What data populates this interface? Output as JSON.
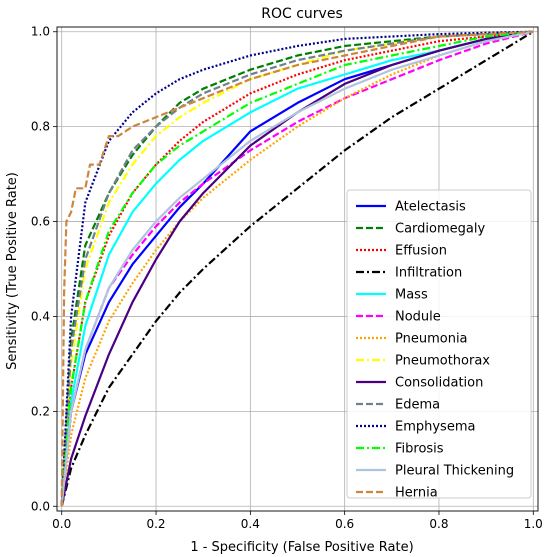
{
  "chart_data": {
    "type": "line",
    "title": "ROC curves",
    "xlabel": "1 - Specificity (False Positive Rate)",
    "ylabel": "Sensitivity (True Positive Rate)",
    "xlim": [
      -0.01,
      1.01
    ],
    "ylim": [
      -0.01,
      1.01
    ],
    "xticks": [
      0.0,
      0.2,
      0.4,
      0.6,
      0.8,
      1.0
    ],
    "yticks": [
      0.0,
      0.2,
      0.4,
      0.6,
      0.8,
      1.0
    ],
    "xtick_labels": [
      "0.0",
      "0.2",
      "0.4",
      "0.6",
      "0.8",
      "1.0"
    ],
    "ytick_labels": [
      "0.0",
      "0.2",
      "0.4",
      "0.6",
      "0.8",
      "1.0"
    ],
    "grid": true,
    "legend": "center-right",
    "series": [
      {
        "name": "Atelectasis",
        "color": "#0000ff",
        "style": "solid",
        "x": [
          0,
          0.02,
          0.05,
          0.1,
          0.15,
          0.2,
          0.25,
          0.3,
          0.4,
          0.5,
          0.6,
          0.7,
          0.8,
          0.9,
          1.0
        ],
        "y": [
          0,
          0.2,
          0.32,
          0.43,
          0.51,
          0.57,
          0.63,
          0.68,
          0.79,
          0.85,
          0.9,
          0.93,
          0.96,
          0.985,
          1.0
        ]
      },
      {
        "name": "Cardiomegaly",
        "color": "#008000",
        "style": "dashed",
        "x": [
          0,
          0.02,
          0.05,
          0.1,
          0.15,
          0.2,
          0.25,
          0.3,
          0.4,
          0.5,
          0.6,
          0.7,
          0.8,
          0.9,
          1.0
        ],
        "y": [
          0,
          0.35,
          0.55,
          0.66,
          0.74,
          0.8,
          0.85,
          0.88,
          0.92,
          0.95,
          0.97,
          0.98,
          0.99,
          0.995,
          1.0
        ]
      },
      {
        "name": "Effusion",
        "color": "#ff0000",
        "style": "dotted",
        "x": [
          0,
          0.02,
          0.05,
          0.1,
          0.15,
          0.2,
          0.25,
          0.3,
          0.4,
          0.5,
          0.6,
          0.7,
          0.8,
          0.9,
          1.0
        ],
        "y": [
          0,
          0.25,
          0.43,
          0.57,
          0.66,
          0.72,
          0.77,
          0.81,
          0.87,
          0.91,
          0.94,
          0.96,
          0.98,
          0.99,
          1.0
        ]
      },
      {
        "name": "Infiltration",
        "color": "#000000",
        "style": "dashdot",
        "x": [
          0,
          0.02,
          0.05,
          0.1,
          0.15,
          0.2,
          0.25,
          0.3,
          0.4,
          0.5,
          0.6,
          0.7,
          0.8,
          0.9,
          1.0
        ],
        "y": [
          0,
          0.08,
          0.15,
          0.25,
          0.32,
          0.39,
          0.45,
          0.5,
          0.59,
          0.67,
          0.75,
          0.82,
          0.88,
          0.94,
          1.0
        ]
      },
      {
        "name": "Mass",
        "color": "#00ffff",
        "style": "solid",
        "x": [
          0,
          0.02,
          0.05,
          0.1,
          0.15,
          0.2,
          0.25,
          0.3,
          0.4,
          0.5,
          0.6,
          0.7,
          0.8,
          0.9,
          1.0
        ],
        "y": [
          0,
          0.22,
          0.38,
          0.53,
          0.62,
          0.68,
          0.73,
          0.77,
          0.83,
          0.88,
          0.91,
          0.94,
          0.96,
          0.985,
          1.0
        ]
      },
      {
        "name": "Nodule",
        "color": "#ff00ff",
        "style": "dashed",
        "x": [
          0,
          0.02,
          0.05,
          0.1,
          0.15,
          0.2,
          0.25,
          0.3,
          0.4,
          0.5,
          0.6,
          0.7,
          0.8,
          0.9,
          1.0
        ],
        "y": [
          0,
          0.2,
          0.33,
          0.46,
          0.53,
          0.59,
          0.64,
          0.68,
          0.75,
          0.81,
          0.86,
          0.9,
          0.94,
          0.975,
          1.0
        ]
      },
      {
        "name": "Pneumonia",
        "color": "#ffa500",
        "style": "dotted",
        "x": [
          0,
          0.02,
          0.05,
          0.1,
          0.15,
          0.2,
          0.25,
          0.3,
          0.4,
          0.5,
          0.6,
          0.7,
          0.8,
          0.9,
          1.0
        ],
        "y": [
          0,
          0.15,
          0.27,
          0.39,
          0.47,
          0.54,
          0.6,
          0.65,
          0.73,
          0.8,
          0.86,
          0.91,
          0.95,
          0.98,
          1.0
        ]
      },
      {
        "name": "Pneumothorax",
        "color": "#ffff00",
        "style": "dashdot",
        "x": [
          0,
          0.02,
          0.05,
          0.1,
          0.15,
          0.2,
          0.25,
          0.3,
          0.4,
          0.5,
          0.6,
          0.7,
          0.8,
          0.9,
          1.0
        ],
        "y": [
          0,
          0.3,
          0.5,
          0.64,
          0.72,
          0.78,
          0.82,
          0.85,
          0.9,
          0.93,
          0.96,
          0.975,
          0.99,
          0.995,
          1.0
        ]
      },
      {
        "name": "Consolidation",
        "color": "#4b0082",
        "style": "solid",
        "x": [
          0,
          0.02,
          0.05,
          0.1,
          0.15,
          0.2,
          0.25,
          0.3,
          0.4,
          0.5,
          0.6,
          0.7,
          0.8,
          0.9,
          1.0
        ],
        "y": [
          0,
          0.1,
          0.19,
          0.32,
          0.43,
          0.52,
          0.6,
          0.66,
          0.76,
          0.83,
          0.89,
          0.93,
          0.96,
          0.985,
          1.0
        ]
      },
      {
        "name": "Edema",
        "color": "#708090",
        "style": "dashed",
        "x": [
          0,
          0.02,
          0.05,
          0.1,
          0.15,
          0.2,
          0.25,
          0.3,
          0.4,
          0.5,
          0.6,
          0.7,
          0.8,
          0.9,
          1.0
        ],
        "y": [
          0,
          0.33,
          0.52,
          0.66,
          0.75,
          0.8,
          0.84,
          0.87,
          0.91,
          0.94,
          0.96,
          0.975,
          0.99,
          0.995,
          1.0
        ]
      },
      {
        "name": "Emphysema",
        "color": "#00008b",
        "style": "dotted",
        "x": [
          0,
          0.02,
          0.05,
          0.1,
          0.15,
          0.2,
          0.25,
          0.3,
          0.4,
          0.5,
          0.6,
          0.7,
          0.8,
          0.9,
          1.0
        ],
        "y": [
          0,
          0.4,
          0.64,
          0.77,
          0.83,
          0.87,
          0.9,
          0.92,
          0.95,
          0.97,
          0.985,
          0.99,
          0.995,
          0.998,
          1.0
        ]
      },
      {
        "name": "Fibrosis",
        "color": "#00ff00",
        "style": "dashdot",
        "x": [
          0,
          0.02,
          0.05,
          0.1,
          0.15,
          0.2,
          0.25,
          0.3,
          0.4,
          0.5,
          0.6,
          0.7,
          0.8,
          0.9,
          1.0
        ],
        "y": [
          0,
          0.25,
          0.43,
          0.58,
          0.66,
          0.72,
          0.76,
          0.79,
          0.85,
          0.89,
          0.93,
          0.95,
          0.97,
          0.99,
          1.0
        ]
      },
      {
        "name": "Pleural Thickening",
        "color": "#b0c4de",
        "style": "solid",
        "x": [
          0,
          0.02,
          0.05,
          0.1,
          0.15,
          0.2,
          0.25,
          0.3,
          0.4,
          0.5,
          0.6,
          0.7,
          0.8,
          0.9,
          1.0
        ],
        "y": [
          0,
          0.2,
          0.33,
          0.46,
          0.54,
          0.6,
          0.65,
          0.69,
          0.77,
          0.83,
          0.88,
          0.92,
          0.95,
          0.98,
          1.0
        ]
      },
      {
        "name": "Hernia",
        "color": "#cd853f",
        "style": "dashed",
        "x": [
          0,
          0.005,
          0.01,
          0.02,
          0.03,
          0.05,
          0.06,
          0.08,
          0.1,
          0.12,
          0.15,
          0.2,
          0.3,
          0.4,
          0.5,
          0.6,
          0.7,
          0.8,
          0.9,
          1.0
        ],
        "y": [
          0,
          0.45,
          0.6,
          0.62,
          0.67,
          0.67,
          0.72,
          0.72,
          0.78,
          0.78,
          0.8,
          0.82,
          0.86,
          0.9,
          0.93,
          0.95,
          0.97,
          0.99,
          0.995,
          1.0
        ]
      }
    ]
  }
}
